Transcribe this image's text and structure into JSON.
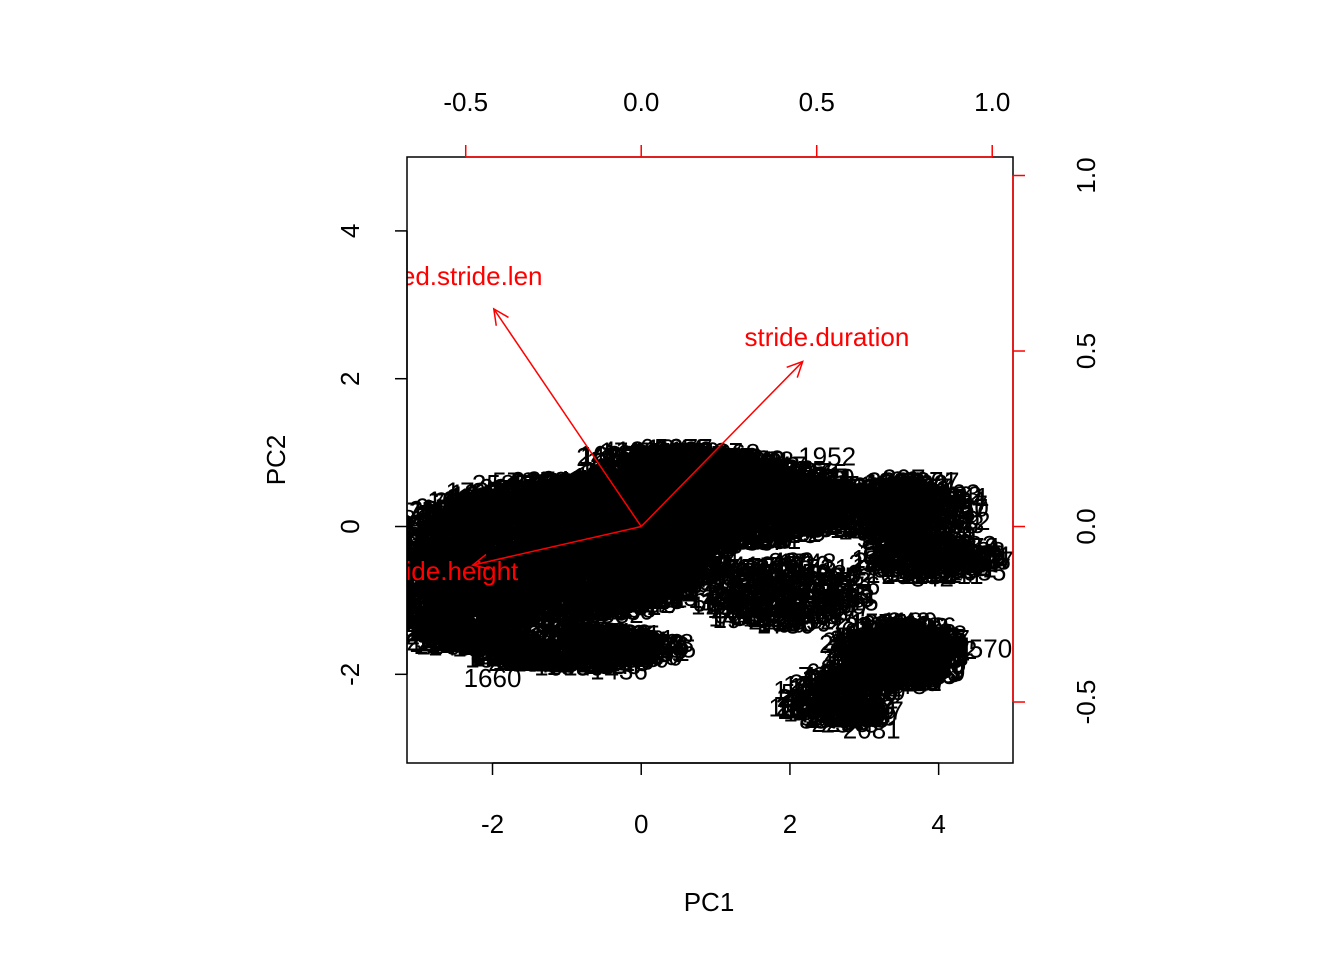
{
  "chart_data": {
    "type": "scatter",
    "subtype": "biplot",
    "title": "",
    "xlabel": "PC1",
    "ylabel": "PC2",
    "xlim": [
      -3.15,
      5.0
    ],
    "ylim": [
      -3.2,
      5.0
    ],
    "x_ticks": [
      -2,
      0,
      2,
      4
    ],
    "y_ticks": [
      -2,
      0,
      2,
      4
    ],
    "top_axis_ticks": [
      -0.5,
      0.0,
      0.5,
      1.0
    ],
    "right_axis_ticks": [
      -0.5,
      0.0,
      0.5,
      1.0
    ],
    "loading_axis_color": "#ff0000",
    "arrow_color": "#ff0000",
    "point_label_color": "#000000",
    "loadings": [
      {
        "name": "scaled.stride.len",
        "shown_label": "ed.stride.len",
        "x": -0.42,
        "y": 0.62
      },
      {
        "name": "stride.duration",
        "x": 0.46,
        "y": 0.47
      },
      {
        "name": "stride.height",
        "x": -0.48,
        "y": -0.11
      }
    ],
    "point_labels": {
      "note": "Thousands of overlapping numeric observation labels; visible readable samples listed",
      "visible_samples": [
        {
          "label": "1660",
          "x": -2.0,
          "y": -2.05
        },
        {
          "label": "1436",
          "x": -0.3,
          "y": -1.95
        },
        {
          "label": "2081",
          "x": 3.1,
          "y": -2.75
        },
        {
          "label": "2570",
          "x": 4.6,
          "y": -1.65
        },
        {
          "label": "1952",
          "x": 2.5,
          "y": 0.95
        },
        {
          "label": "1224",
          "x": 2.1,
          "y": -2.45
        }
      ]
    }
  }
}
